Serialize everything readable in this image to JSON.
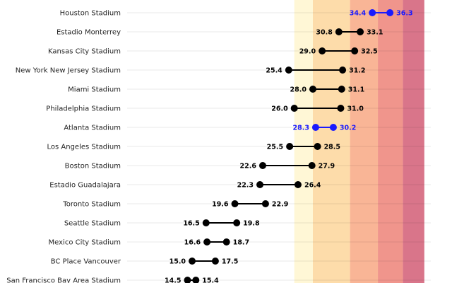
{
  "chart_data": {
    "type": "dumbbell",
    "title": "",
    "xlabel": "",
    "ylabel": "",
    "xlim": [
      8,
      40
    ],
    "grid": "horizontal",
    "legend": "none",
    "background_bands": [
      {
        "from": 8,
        "to": 26,
        "color": "#ffffff"
      },
      {
        "from": 26,
        "to": 28,
        "color": "#fff7d6"
      },
      {
        "from": 28,
        "to": 32,
        "color": "#fddcaa"
      },
      {
        "from": 32,
        "to": 35,
        "color": "#f9b596"
      },
      {
        "from": 35,
        "to": 37.7,
        "color": "#f0958c"
      },
      {
        "from": 37.7,
        "to": 40,
        "color": "#d9758a"
      }
    ],
    "point_color": "#000000",
    "highlight_color": "#1a1aff",
    "rows": [
      {
        "stadium": "Houston Stadium",
        "low": 34.4,
        "high": 36.3,
        "highlight": true
      },
      {
        "stadium": "Estadio Monterrey",
        "low": 30.8,
        "high": 33.1,
        "highlight": false
      },
      {
        "stadium": "Kansas City Stadium",
        "low": 29.0,
        "high": 32.5,
        "highlight": false
      },
      {
        "stadium": "New York New Jersey Stadium",
        "low": 25.4,
        "high": 31.2,
        "highlight": false
      },
      {
        "stadium": "Miami Stadium",
        "low": 28.0,
        "high": 31.1,
        "highlight": false
      },
      {
        "stadium": "Philadelphia Stadium",
        "low": 26.0,
        "high": 31.0,
        "highlight": false
      },
      {
        "stadium": "Atlanta Stadium",
        "low": 28.3,
        "high": 30.2,
        "highlight": true
      },
      {
        "stadium": "Los Angeles Stadium",
        "low": 25.5,
        "high": 28.5,
        "highlight": false
      },
      {
        "stadium": "Boston Stadium",
        "low": 22.6,
        "high": 27.9,
        "highlight": false
      },
      {
        "stadium": "Estadio Guadalajara",
        "low": 22.3,
        "high": 26.4,
        "highlight": false
      },
      {
        "stadium": "Toronto Stadium",
        "low": 19.6,
        "high": 22.9,
        "highlight": false
      },
      {
        "stadium": "Seattle Stadium",
        "low": 16.5,
        "high": 19.8,
        "highlight": false
      },
      {
        "stadium": "Mexico City Stadium",
        "low": 16.6,
        "high": 18.7,
        "highlight": false
      },
      {
        "stadium": "BC Place Vancouver",
        "low": 15.0,
        "high": 17.5,
        "highlight": false
      },
      {
        "stadium": "San Francisco Bay Area Stadium",
        "low": 14.5,
        "high": 15.4,
        "highlight": false
      }
    ]
  }
}
